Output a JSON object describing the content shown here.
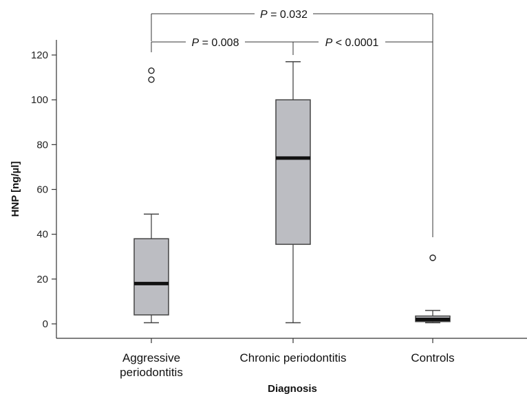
{
  "chart_data": {
    "type": "boxplot",
    "xlabel": "Diagnosis",
    "ylabel": "HNP [ng/µl]",
    "ylim": [
      0,
      120
    ],
    "yticks": [
      0,
      20,
      40,
      60,
      80,
      100,
      120
    ],
    "grid": false,
    "categories": [
      {
        "lines": [
          "Aggressive",
          "periodontitis"
        ]
      },
      {
        "lines": [
          "Chronic periodontitis"
        ]
      },
      {
        "lines": [
          "Controls"
        ]
      }
    ],
    "boxes": [
      {
        "min": 0.5,
        "q1": 4,
        "median": 18,
        "q3": 38,
        "max": 49,
        "outliers": [
          109,
          113
        ]
      },
      {
        "min": 0.5,
        "q1": 35.5,
        "median": 74,
        "q3": 100,
        "max": 117,
        "outliers": []
      },
      {
        "min": 0.5,
        "q1": 1,
        "median": 2,
        "q3": 3.5,
        "max": 6,
        "outliers": [
          29.5
        ]
      }
    ],
    "comparisons": [
      {
        "p_symbol": "P",
        "p_text": " = 0.032",
        "groups": [
          0,
          2
        ]
      },
      {
        "p_symbol": "P",
        "p_text": " = 0.008",
        "groups": [
          0,
          1
        ]
      },
      {
        "p_symbol": "P",
        "p_text": " < 0.0001",
        "groups": [
          1,
          2
        ]
      }
    ],
    "colors": {
      "box_fill": "#bcbdc2",
      "box_stroke": "#444444",
      "median": "#111111",
      "axis": "#333333"
    }
  }
}
